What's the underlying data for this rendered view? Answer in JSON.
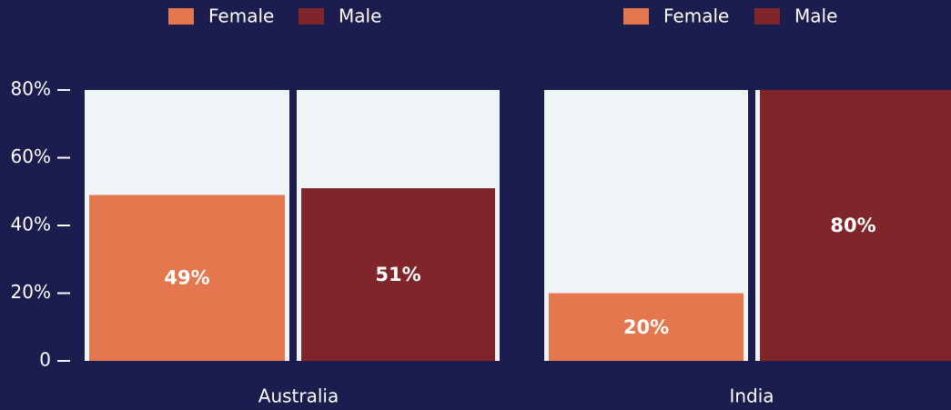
{
  "chart_data": [
    {
      "type": "bar",
      "categories": [
        "Australia"
      ],
      "series": [
        {
          "name": "Female",
          "color": "#e5774f",
          "values": [
            49
          ],
          "value_labels": [
            "49%"
          ]
        },
        {
          "name": "Male",
          "color": "#80262b",
          "values": [
            51
          ],
          "value_labels": [
            "51%"
          ]
        }
      ],
      "ylim": [
        0,
        80
      ],
      "yticks": [
        0,
        {
          "value": 20,
          "label": "20%"
        },
        {
          "value": 40,
          "label": "40%"
        },
        {
          "value": 60,
          "label": "60%"
        },
        {
          "value": 80,
          "label": "80%"
        }
      ]
    },
    {
      "type": "bar",
      "categories": [
        "India"
      ],
      "series": [
        {
          "name": "Female",
          "color": "#e5774f",
          "values": [
            20
          ],
          "value_labels": [
            "20%"
          ]
        },
        {
          "name": "Male",
          "color": "#80262b",
          "values": [
            80
          ],
          "value_labels": [
            "80%"
          ]
        }
      ],
      "ylim": [
        0,
        80
      ]
    }
  ]
}
